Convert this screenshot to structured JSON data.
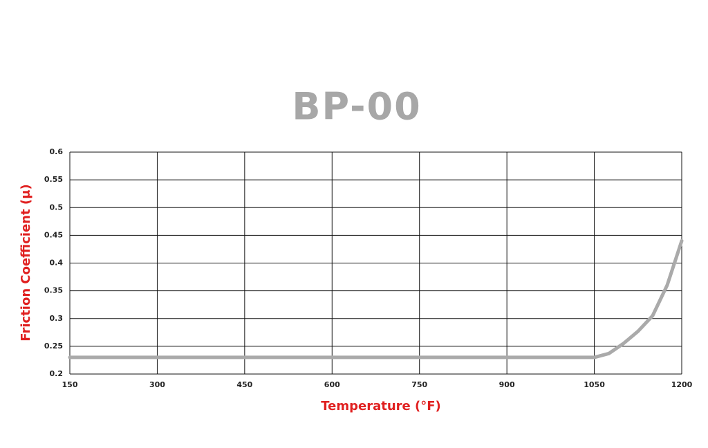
{
  "chart_data": {
    "type": "line",
    "title": "BP-00",
    "x_label": "Temperature (°F)",
    "y_label": "Friction Coefficient (μ)",
    "x": [
      150,
      1050,
      1075,
      1100,
      1125,
      1150,
      1175,
      1200
    ],
    "series": [
      {
        "name": "BP-00",
        "color": "#aaaaaa",
        "values": [
          0.23,
          0.23,
          0.237,
          0.255,
          0.277,
          0.305,
          0.36,
          0.44
        ]
      }
    ],
    "xlim": [
      150,
      1200
    ],
    "xticks": [
      150,
      300,
      450,
      600,
      750,
      900,
      1050,
      1200
    ],
    "ylim": [
      0.2,
      0.6
    ],
    "yticks": [
      0.2,
      0.25,
      0.3,
      0.35,
      0.4,
      0.45,
      0.5,
      0.55,
      0.6
    ],
    "grid": true
  }
}
